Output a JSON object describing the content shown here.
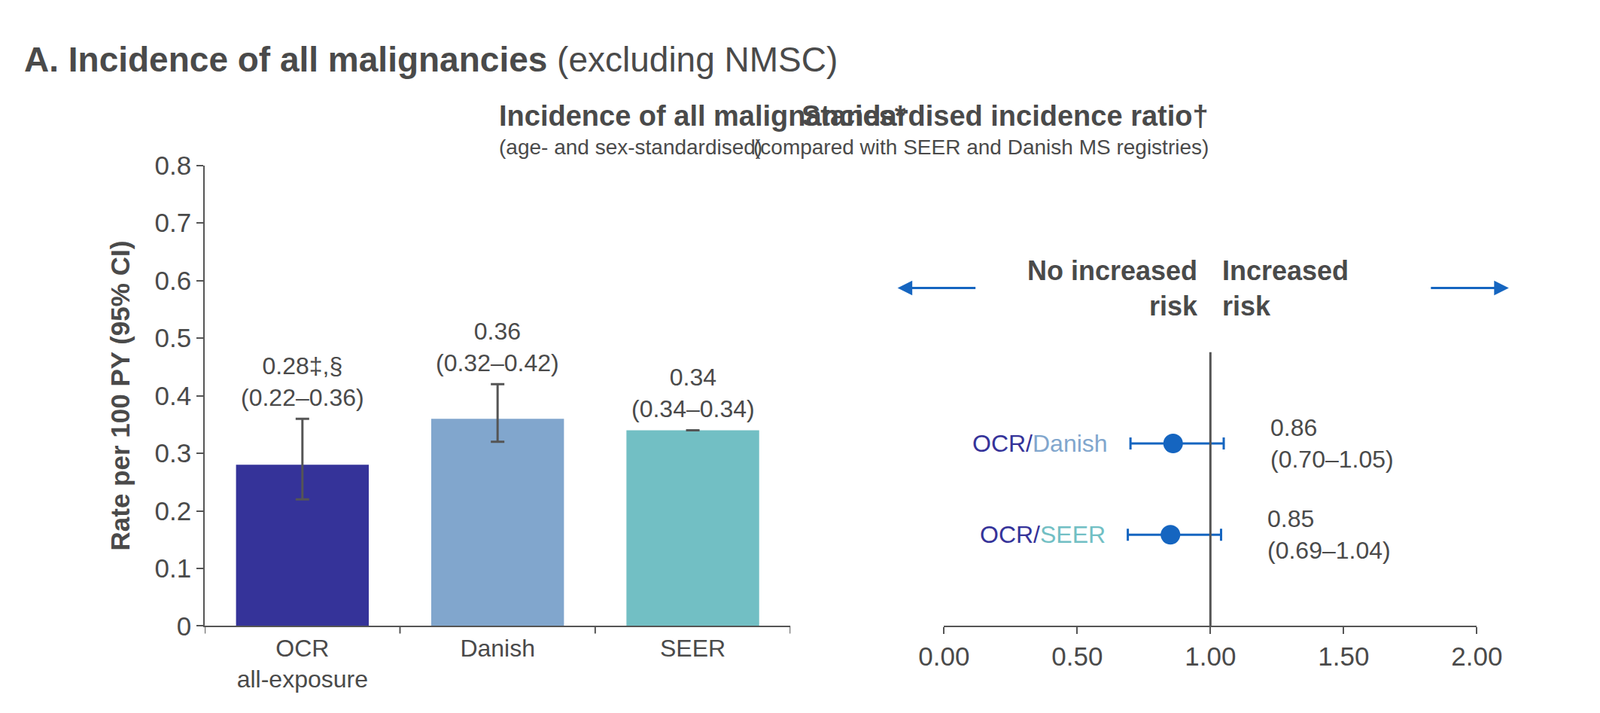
{
  "heading": {
    "text": "A. Incidence of all malignancies",
    "note": "(excluding NMSC)"
  },
  "chart_data": [
    {
      "type": "bar",
      "title": "Incidence of all malignancies*",
      "subtitle": "(age- and sex-standardised)",
      "y_label": "Rate per 100 PY (95% CI)",
      "categories": [
        "OCR\nall-exposure",
        "Danish",
        "SEER"
      ],
      "values": [
        0.28,
        0.36,
        0.34
      ],
      "ci_low": [
        0.22,
        0.32,
        0.34
      ],
      "ci_high": [
        0.36,
        0.42,
        0.34
      ],
      "data_labels": true,
      "value_labels": [
        "0.28‡,§\n(0.22–0.36)",
        "0.36\n(0.32–0.42)",
        "0.34\n(0.34–0.34)"
      ],
      "colors": [
        "#353399",
        "#81a6cd",
        "#72bfc4"
      ],
      "ylim": [
        0,
        0.8
      ],
      "yticks": [
        0,
        0.1,
        0.2,
        0.3,
        0.4,
        0.5,
        0.6,
        0.7,
        0.8
      ],
      "grid": false
    },
    {
      "type": "forest",
      "title": "Standardised incidence ratio†",
      "subtitle": "(compared with SEER and Danish MS registries)",
      "categories": [
        [
          {
            "text": "OCR",
            "color": "#353399"
          },
          {
            "text": "/",
            "color": "#353399"
          },
          {
            "text": "Danish",
            "color": "#81a6cd"
          }
        ],
        [
          {
            "text": "OCR",
            "color": "#353399"
          },
          {
            "text": "/",
            "color": "#353399"
          },
          {
            "text": "SEER",
            "color": "#72bfc4"
          }
        ]
      ],
      "values": [
        0.86,
        0.85
      ],
      "ci_low": [
        0.7,
        0.69
      ],
      "ci_high": [
        1.05,
        1.04
      ],
      "data_labels": true,
      "value_labels": [
        "0.86\n(0.70–1.05)",
        "0.85\n(0.69–1.04)"
      ],
      "color": "#1565c0",
      "reference": 1,
      "annotations": [
        "No increased\nrisk",
        "Increased\nrisk"
      ],
      "xlim": [
        0,
        2
      ],
      "xticks": [
        {
          "value": 0,
          "label": "0.00"
        },
        {
          "value": 0.5,
          "label": "0.50"
        },
        {
          "value": 1,
          "label": "1.00"
        },
        {
          "value": 1.5,
          "label": "1.50"
        },
        {
          "value": 2,
          "label": "2.00"
        }
      ],
      "tick_labels": "x",
      "grid": false
    }
  ]
}
